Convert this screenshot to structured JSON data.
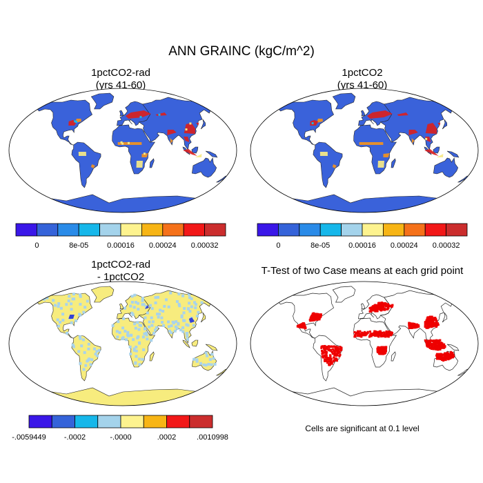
{
  "figure": {
    "title": "ANN GRAINC (kgC/m^2)"
  },
  "panels": [
    {
      "title_line1": "1pctCO2-rad",
      "title_line2": "(yrs 41-60)",
      "colorbar": {
        "colors": [
          "#3a17e8",
          "#3563d9",
          "#2a8be8",
          "#16b7ea",
          "#a4d3eb",
          "#fdf38f",
          "#f7b515",
          "#f5711a",
          "#f21818",
          "#cb2d2d"
        ],
        "labels": [
          "0",
          "8e-05",
          "0.00016",
          "0.00024",
          "0.00032"
        ]
      }
    },
    {
      "title_line1": "1pctCO2",
      "title_line2": "(yrs 41-60)",
      "colorbar": {
        "colors": [
          "#3a17e8",
          "#3563d9",
          "#2a8be8",
          "#16b7ea",
          "#a4d3eb",
          "#fdf38f",
          "#f7b515",
          "#f5711a",
          "#f21818",
          "#cb2d2d"
        ],
        "labels": [
          "0",
          "8e-05",
          "0.00016",
          "0.00024",
          "0.00032"
        ]
      }
    },
    {
      "title_line1": "1pctCO2-rad",
      "title_line2": "- 1pctCO2",
      "colorbar": {
        "colors": [
          "#3a17e8",
          "#3563d9",
          "#16b7ea",
          "#a4d3eb",
          "#fdf38f",
          "#f7b515",
          "#f21818",
          "#cb2d2d"
        ],
        "labels": [
          "-.0059449",
          "-.0002",
          "-.0000",
          ".0002",
          ".0010998"
        ]
      }
    },
    {
      "title_line1": "T-Test of two Case means at each grid point",
      "note": "Cells are significant at 0.1 level"
    }
  ],
  "map_colors": {
    "ocean": "#ffffff",
    "land_base": "#3a62da",
    "hotspot_red": "#d92020",
    "hotspot_orange": "#f39320",
    "hotspot_yellow": "#f7e985",
    "diff_land": "#f7ec7e",
    "diff_blue": "#a8d3ec",
    "diff_dark": "#3342d6",
    "significant": "#ee0000",
    "coast": "#222222"
  }
}
